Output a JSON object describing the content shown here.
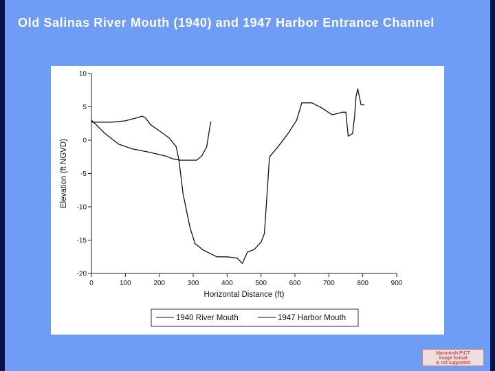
{
  "slide": {
    "title": "Old Salinas River Mouth (1940) and 1947 Harbor Entrance Channel",
    "badge_lines": [
      "Macintosh PICT",
      "image format",
      "is not supported"
    ]
  },
  "colors": {
    "background": "#6f9cf4",
    "edge": "#08114a",
    "line": "#111111"
  },
  "chart_data": {
    "type": "line",
    "title": "",
    "xlabel": "Horizontal Distance (ft)",
    "ylabel": "Elevation (ft NGVD)",
    "xlim": [
      0,
      900
    ],
    "ylim": [
      -20,
      10
    ],
    "x_ticks": [
      0,
      100,
      200,
      300,
      400,
      500,
      600,
      700,
      800,
      900
    ],
    "y_ticks": [
      10,
      5,
      0,
      -5,
      -10,
      -15,
      -20
    ],
    "grid": false,
    "legend_position": "bottom",
    "series": [
      {
        "name": "1940 River Mouth",
        "points": [
          [
            0,
            2.7
          ],
          [
            60,
            2.7
          ],
          [
            100,
            2.9
          ],
          [
            130,
            3.3
          ],
          [
            150,
            3.6
          ],
          [
            160,
            3.3
          ],
          [
            175,
            2.3
          ],
          [
            200,
            1.4
          ],
          [
            230,
            0.3
          ],
          [
            250,
            -1
          ],
          [
            258,
            -3
          ],
          [
            270,
            -8
          ],
          [
            290,
            -13
          ],
          [
            305,
            -15.5
          ],
          [
            330,
            -16.5
          ],
          [
            370,
            -17.5
          ],
          [
            400,
            -17.5
          ],
          [
            430,
            -17.7
          ],
          [
            445,
            -18.5
          ],
          [
            460,
            -16.8
          ],
          [
            480,
            -16.4
          ],
          [
            500,
            -15.3
          ],
          [
            510,
            -14
          ],
          [
            518,
            -8
          ],
          [
            525,
            -2.5
          ],
          [
            550,
            -1
          ],
          [
            580,
            1
          ],
          [
            605,
            3
          ],
          [
            620,
            5.6
          ],
          [
            650,
            5.6
          ],
          [
            680,
            4.8
          ],
          [
            710,
            3.8
          ],
          [
            740,
            4.2
          ],
          [
            750,
            4.2
          ],
          [
            757,
            0.6
          ],
          [
            770,
            1
          ],
          [
            776,
            3.6
          ],
          [
            780,
            6.5
          ],
          [
            785,
            7.7
          ],
          [
            795,
            5.3
          ],
          [
            805,
            5.3
          ]
        ]
      },
      {
        "name": "1947 Harbor Mouth",
        "points": [
          [
            0,
            3
          ],
          [
            40,
            1
          ],
          [
            80,
            -0.6
          ],
          [
            120,
            -1.3
          ],
          [
            170,
            -1.8
          ],
          [
            220,
            -2.4
          ],
          [
            240,
            -2.8
          ],
          [
            260,
            -3
          ],
          [
            310,
            -3
          ],
          [
            325,
            -2.4
          ],
          [
            340,
            -1
          ],
          [
            346,
            1
          ],
          [
            352,
            2.8
          ]
        ]
      }
    ]
  }
}
